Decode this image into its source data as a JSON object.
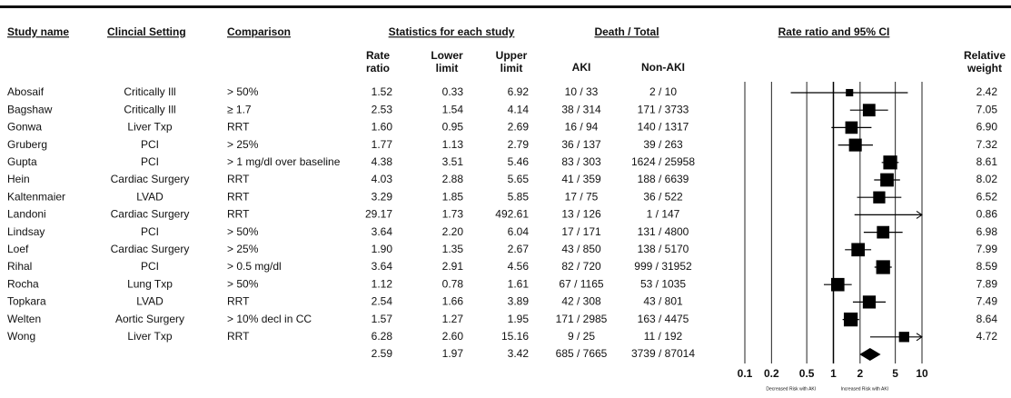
{
  "chart_data": {
    "type": "forest",
    "headers": {
      "study": "Study name",
      "setting": "Clincial Setting",
      "comparison": "Comparison",
      "stats": "Statistics for each study",
      "death": "Death / Total",
      "plot": "Rate ratio and 95% CI",
      "rate": "Rate ratio",
      "lower": "Lower limit",
      "upper": "Upper limit",
      "aki": "AKI",
      "non_aki": "Non-AKI",
      "weight": "Relative weight"
    },
    "studies": [
      {
        "name": "Abosaif",
        "setting": "Critically Ill",
        "comparison": "> 50%",
        "rate": 1.52,
        "lower": 0.33,
        "upper": 6.92,
        "aki": "10 / 33",
        "non_aki": "2 / 10",
        "weight": 2.42
      },
      {
        "name": "Bagshaw",
        "setting": "Critically Ill",
        "comparison": "≥ 1.7",
        "rate": 2.53,
        "lower": 1.54,
        "upper": 4.14,
        "aki": "38 / 314",
        "non_aki": "171 / 3733",
        "weight": 7.05
      },
      {
        "name": "Gonwa",
        "setting": "Liver Txp",
        "comparison": "RRT",
        "rate": 1.6,
        "rate_label": "1.60",
        "lower": 0.95,
        "upper": 2.69,
        "aki": "16 / 94",
        "non_aki": "140 / 1317",
        "weight": 6.9,
        "weight_label": "6.90"
      },
      {
        "name": "Gruberg",
        "setting": "PCI",
        "comparison": "> 25%",
        "rate": 1.77,
        "lower": 1.13,
        "upper": 2.79,
        "aki": "36 / 137",
        "non_aki": "39 / 263",
        "weight": 7.32
      },
      {
        "name": "Gupta",
        "setting": "PCI",
        "comparison": "> 1 mg/dl over baseline",
        "rate": 4.38,
        "lower": 3.51,
        "upper": 5.46,
        "aki": "83 / 303",
        "non_aki": "1624 / 25958",
        "weight": 8.61
      },
      {
        "name": "Hein",
        "setting": "Cardiac Surgery",
        "comparison": "RRT",
        "rate": 4.03,
        "lower": 2.88,
        "upper": 5.65,
        "aki": "41 / 359",
        "non_aki": "188 / 6639",
        "weight": 8.02
      },
      {
        "name": "Kaltenmaier",
        "setting": "LVAD",
        "comparison": "RRT",
        "rate": 3.29,
        "lower": 1.85,
        "upper": 5.85,
        "aki": "17 / 75",
        "non_aki": "36 / 522",
        "weight": 6.52
      },
      {
        "name": "Landoni",
        "setting": "Cardiac Surgery",
        "comparison": "RRT",
        "rate": 29.17,
        "lower": 1.73,
        "upper": 492.61,
        "aki": "13 / 126",
        "non_aki": "1 / 147",
        "weight": 0.86
      },
      {
        "name": "Lindsay",
        "setting": "PCI",
        "comparison": "> 50%",
        "rate": 3.64,
        "lower": 2.2,
        "lower_label": "2.20",
        "upper": 6.04,
        "aki": "17 / 171",
        "non_aki": "131 / 4800",
        "weight": 6.98
      },
      {
        "name": "Loef",
        "setting": "Cardiac Surgery",
        "comparison": "> 25%",
        "rate": 1.9,
        "rate_label": "1.90",
        "lower": 1.35,
        "upper": 2.67,
        "aki": "43 / 850",
        "non_aki": "138 / 5170",
        "weight": 7.99
      },
      {
        "name": "Rihal",
        "setting": "PCI",
        "comparison": "> 0.5 mg/dl",
        "rate": 3.64,
        "lower": 2.91,
        "upper": 4.56,
        "aki": "82 / 720",
        "non_aki": "999 / 31952",
        "weight": 8.59
      },
      {
        "name": "Rocha",
        "setting": "Lung Txp",
        "comparison": "> 50%",
        "rate": 1.12,
        "lower": 0.78,
        "upper": 1.61,
        "aki": "67 / 1165",
        "non_aki": "53 / 1035",
        "weight": 7.89
      },
      {
        "name": "Topkara",
        "setting": "LVAD",
        "comparison": "RRT",
        "rate": 2.54,
        "lower": 1.66,
        "upper": 3.89,
        "aki": "42 / 308",
        "non_aki": "43 / 801",
        "weight": 7.49
      },
      {
        "name": "Welten",
        "setting": "Aortic Surgery",
        "comparison": "> 10% decl in CC",
        "rate": 1.57,
        "lower": 1.27,
        "upper": 1.95,
        "aki": "171 / 2985",
        "non_aki": "163 / 4475",
        "weight": 8.64
      },
      {
        "name": "Wong",
        "setting": "Liver Txp",
        "comparison": "RRT",
        "rate": 6.28,
        "lower": 2.6,
        "lower_label": "2.60",
        "upper": 15.16,
        "aki": "9 / 25",
        "non_aki": "11 / 192",
        "weight": 4.72
      }
    ],
    "summary": {
      "rate": 2.59,
      "lower": 1.97,
      "upper": 3.42,
      "aki": "685 / 7665",
      "non_aki": "3739 / 87014"
    },
    "log_scale": true,
    "xlim": [
      0.1,
      10
    ],
    "xticks": [
      0.1,
      0.2,
      0.5,
      1,
      2,
      5,
      10
    ],
    "null_value": 1,
    "footnotes": [
      "Decreased Risk with AKI",
      "Increased Risk with AKI"
    ]
  }
}
